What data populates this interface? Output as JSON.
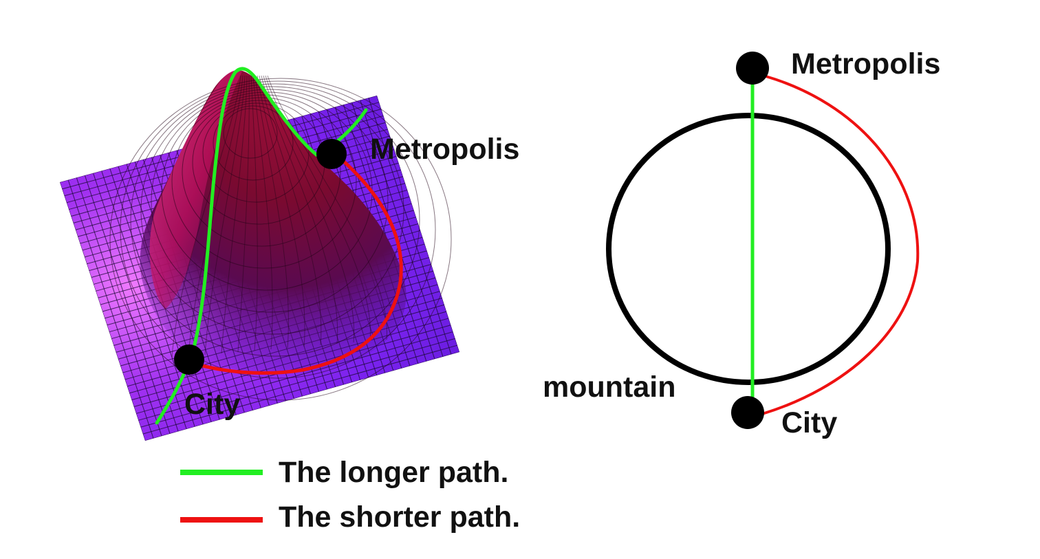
{
  "left_diagram": {
    "labels": {
      "metropolis": "Metropolis",
      "city": "City"
    }
  },
  "right_diagram": {
    "labels": {
      "metropolis": "Metropolis",
      "city": "City",
      "mountain": "mountain"
    }
  },
  "legend": {
    "items": [
      {
        "label": "The longer path.",
        "color": "#22ee22"
      },
      {
        "label": "The shorter path.",
        "color": "#ee1111"
      }
    ]
  },
  "colors": {
    "longer_path": "#22ee22",
    "shorter_path": "#ee1111",
    "surface_light": "#ee66ff",
    "surface_mid": "#8822ee",
    "surface_dark": "#5511aa",
    "peak": "#8a0a3a",
    "node": "#000000",
    "circle": "#000000"
  }
}
